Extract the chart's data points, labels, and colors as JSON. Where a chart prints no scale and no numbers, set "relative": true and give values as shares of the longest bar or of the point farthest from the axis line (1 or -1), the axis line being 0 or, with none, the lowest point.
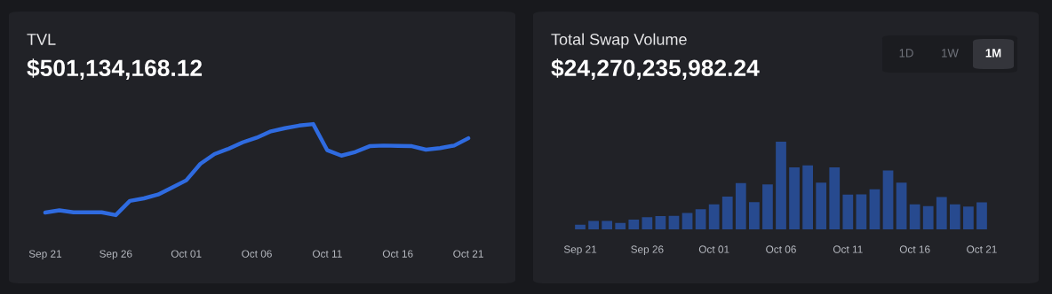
{
  "chart_data": [
    {
      "type": "line",
      "title": "TVL",
      "subtitle": "$501,134,168.12",
      "relative": true,
      "grid": false,
      "legend": false,
      "marker": "none",
      "line_style": "solid",
      "categories": [
        "Sep 21",
        null,
        null,
        null,
        null,
        "Sep 26",
        null,
        null,
        null,
        null,
        "Oct 01",
        null,
        null,
        null,
        null,
        "Oct 06",
        null,
        null,
        null,
        null,
        "Oct 11",
        null,
        null,
        null,
        null,
        "Oct 16",
        null,
        null,
        null,
        null,
        "Oct 21"
      ],
      "series": [
        {
          "color": "#2f6be0",
          "values": [
            0.028,
            0.052,
            0.031,
            0.031,
            0.031,
            0,
            0.156,
            0.184,
            0.226,
            0.302,
            0.382,
            0.563,
            0.67,
            0.729,
            0.799,
            0.851,
            0.92,
            0.955,
            0.983,
            1,
            0.712,
            0.653,
            0.694,
            0.757,
            0.764,
            0.76,
            0.757,
            0.719,
            0.736,
            0.764,
            0.844
          ]
        }
      ]
    },
    {
      "type": "bar",
      "title": "Total Swap Volume",
      "subtitle": "$24,270,235,982.24",
      "relative": true,
      "grid": false,
      "legend": false,
      "annotations": [
        "1D",
        "1W",
        "1M"
      ],
      "categories": [
        "Sep 21",
        null,
        null,
        null,
        null,
        "Sep 26",
        null,
        null,
        null,
        null,
        "Oct 01",
        null,
        null,
        null,
        null,
        "Oct 06",
        null,
        null,
        null,
        null,
        "Oct 11",
        null,
        null,
        null,
        null,
        "Oct 16",
        null,
        null,
        null,
        null,
        "Oct 21"
      ],
      "series": [
        {
          "color": "#274a8f",
          "values": [
            0.054,
            0.097,
            0.097,
            0.072,
            0.112,
            0.14,
            0.152,
            0.155,
            0.188,
            0.231,
            0.285,
            0.375,
            0.527,
            0.31,
            0.513,
            1,
            0.708,
            0.729,
            0.534,
            0.708,
            0.397,
            0.4,
            0.458,
            0.671,
            0.534,
            0.285,
            0.264,
            0.368,
            0.285,
            0.26,
            0.307
          ]
        }
      ]
    }
  ]
}
